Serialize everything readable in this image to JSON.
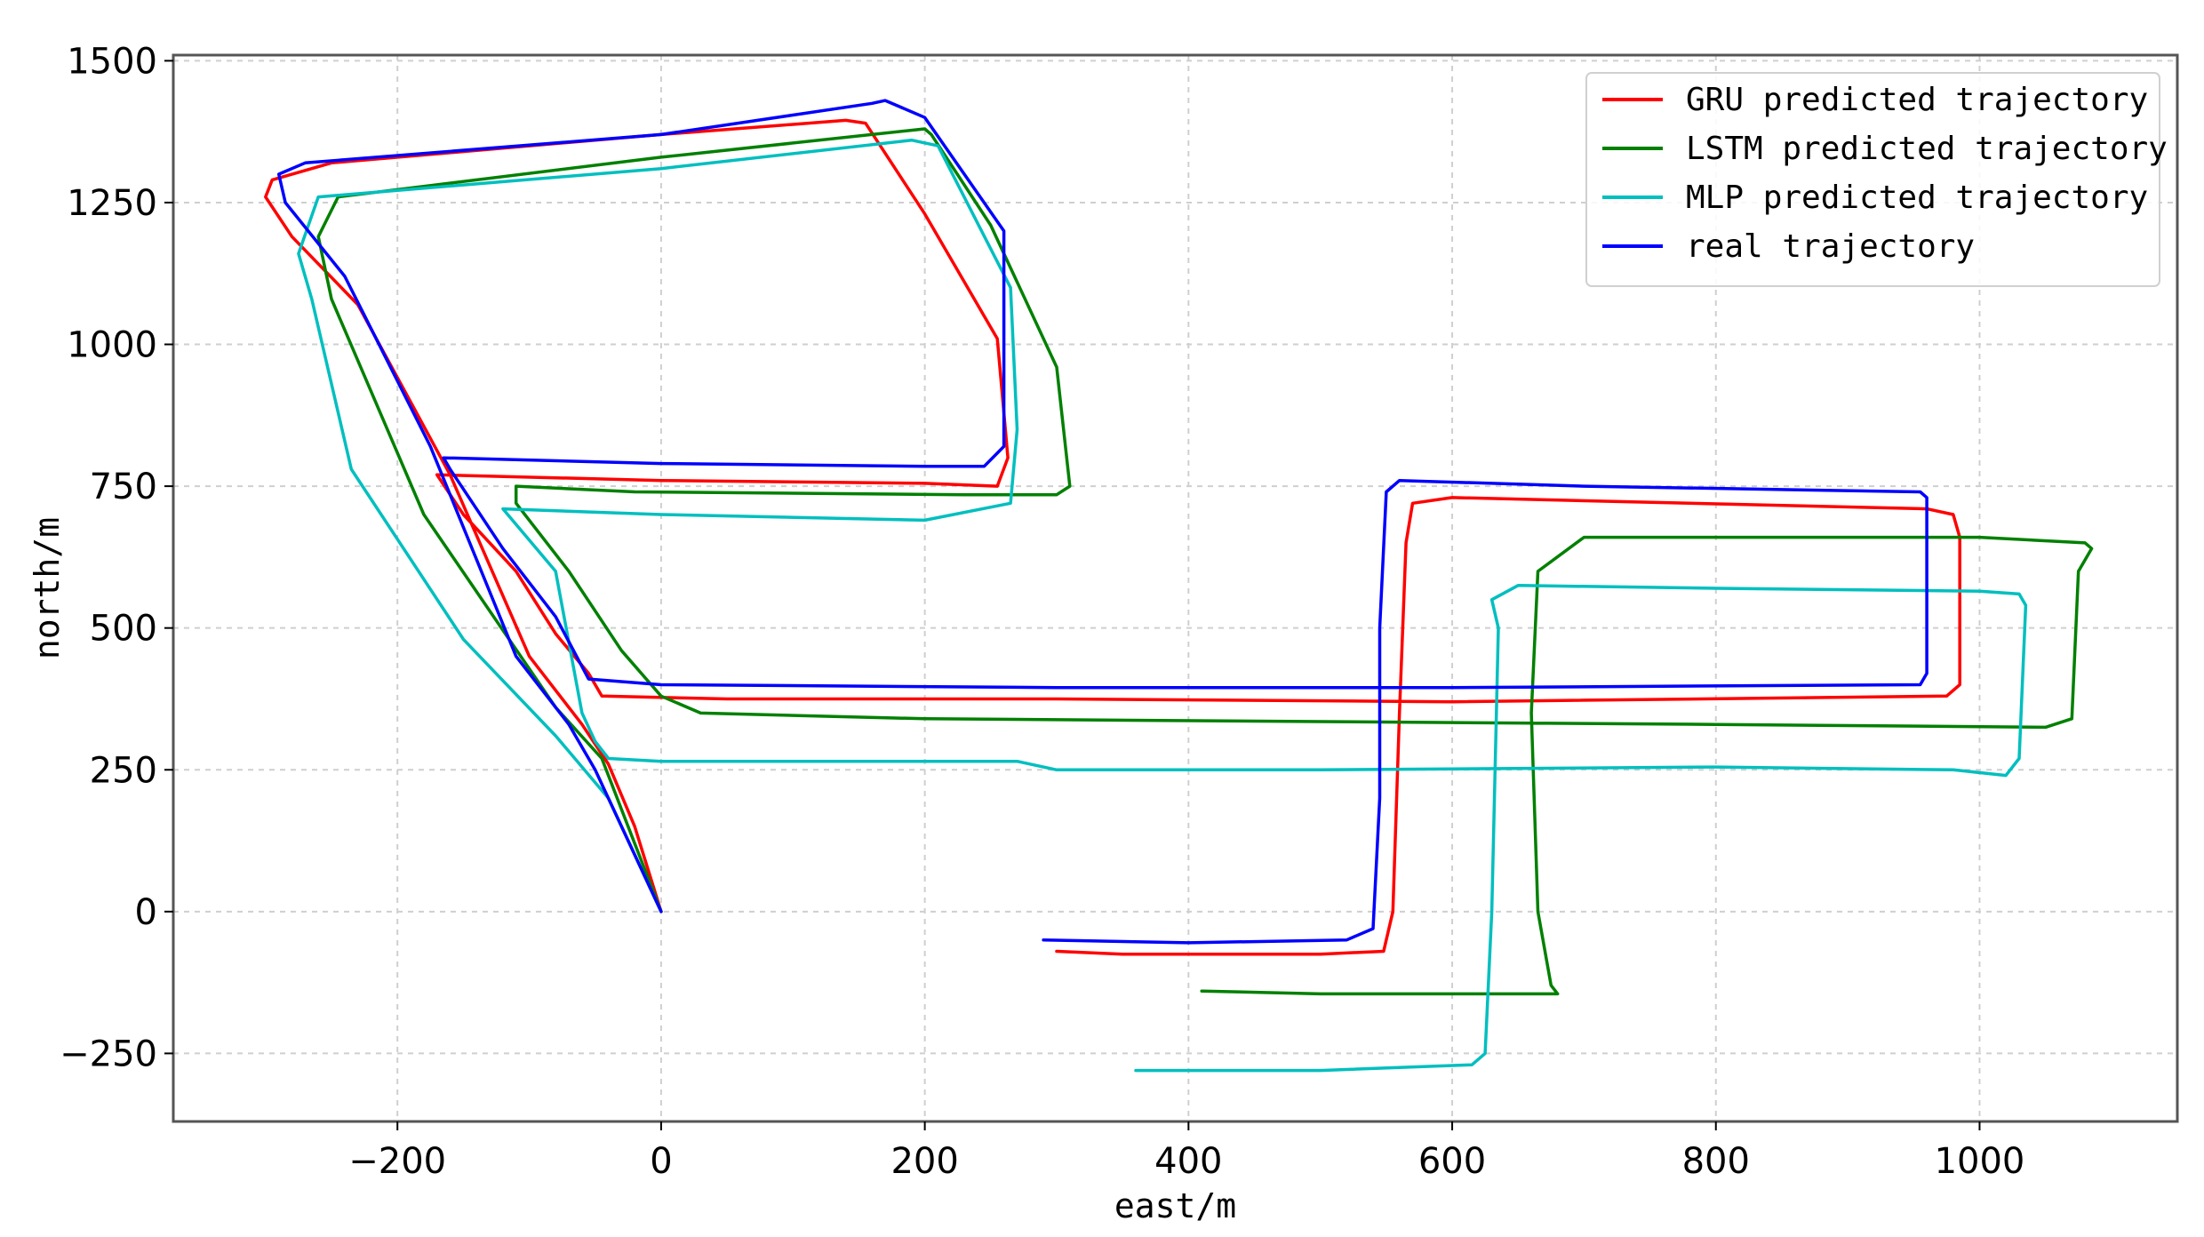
{
  "chart_data": {
    "type": "line",
    "title": "",
    "xlabel": "east/m",
    "ylabel": "north/m",
    "xlim": [
      -370,
      1150
    ],
    "ylim": [
      -370,
      1510
    ],
    "xticks": [
      -200,
      0,
      200,
      400,
      600,
      800,
      1000
    ],
    "yticks": [
      -250,
      0,
      250,
      500,
      750,
      1000,
      1250,
      1500
    ],
    "xtick_labels": [
      "−200",
      "0",
      "200",
      "400",
      "600",
      "800",
      "1000"
    ],
    "ytick_labels": [
      "−250",
      "0",
      "250",
      "500",
      "750",
      "1000",
      "1250",
      "1500"
    ],
    "grid": true,
    "legend_position": "top-right",
    "series": [
      {
        "name": "GRU predicted trajectory",
        "color": "#ff0000",
        "x": [
          0,
          -20,
          -40,
          -60,
          -100,
          -160,
          -230,
          -280,
          -300,
          -295,
          -250,
          0,
          140,
          155,
          200,
          255,
          263,
          255,
          200,
          0,
          -170,
          -150,
          -110,
          -80,
          -55,
          -45,
          50,
          300,
          600,
          975,
          985,
          985,
          980,
          960,
          600,
          570,
          565,
          560,
          555,
          548,
          500,
          350,
          300
        ],
        "y": [
          0,
          150,
          260,
          330,
          450,
          770,
          1070,
          1190,
          1260,
          1290,
          1320,
          1370,
          1395,
          1390,
          1230,
          1010,
          800,
          750,
          755,
          760,
          770,
          700,
          600,
          490,
          420,
          380,
          375,
          375,
          370,
          380,
          400,
          660,
          700,
          710,
          730,
          720,
          650,
          350,
          0,
          -70,
          -75,
          -75,
          -70
        ]
      },
      {
        "name": "LSTM predicted trajectory",
        "color": "#008000",
        "x": [
          0,
          -25,
          -45,
          -80,
          -180,
          -250,
          -260,
          -245,
          0,
          200,
          205,
          250,
          300,
          310,
          300,
          230,
          -20,
          -110,
          -110,
          -70,
          -30,
          0,
          30,
          200,
          500,
          800,
          1050,
          1070,
          1075,
          1085,
          1080,
          1000,
          700,
          665,
          660,
          665,
          675,
          680,
          675,
          640,
          500,
          410
        ],
        "y": [
          0,
          150,
          270,
          360,
          700,
          1080,
          1190,
          1260,
          1330,
          1380,
          1370,
          1210,
          960,
          750,
          735,
          735,
          740,
          750,
          720,
          600,
          460,
          380,
          350,
          340,
          335,
          330,
          325,
          340,
          600,
          640,
          650,
          660,
          660,
          600,
          350,
          0,
          -130,
          -145,
          -145,
          -145,
          -145,
          -140
        ]
      },
      {
        "name": "MLP predicted trajectory",
        "color": "#00bfbf",
        "x": [
          0,
          -40,
          -80,
          -150,
          -235,
          -265,
          -275,
          -260,
          0,
          190,
          210,
          265,
          270,
          265,
          200,
          0,
          -120,
          -80,
          -60,
          -50,
          -40,
          0,
          270,
          300,
          500,
          800,
          980,
          1020,
          1030,
          1035,
          1030,
          1000,
          800,
          650,
          630,
          635,
          630,
          625,
          615,
          500,
          360
        ],
        "y": [
          0,
          200,
          310,
          480,
          780,
          1080,
          1160,
          1260,
          1310,
          1360,
          1350,
          1100,
          850,
          720,
          690,
          700,
          710,
          600,
          350,
          300,
          270,
          265,
          265,
          250,
          250,
          255,
          250,
          240,
          270,
          540,
          560,
          565,
          570,
          575,
          550,
          500,
          0,
          -250,
          -270,
          -280,
          -280
        ]
      },
      {
        "name": "real trajectory",
        "color": "#0000ff",
        "x": [
          0,
          -30,
          -50,
          -70,
          -110,
          -175,
          -240,
          -285,
          -290,
          -270,
          0,
          160,
          170,
          200,
          260,
          260,
          245,
          200,
          0,
          -165,
          -160,
          -120,
          -80,
          -55,
          0,
          300,
          600,
          955,
          960,
          960,
          955,
          700,
          560,
          550,
          545,
          545,
          540,
          520,
          400,
          290
        ],
        "y": [
          0,
          150,
          250,
          330,
          450,
          820,
          1120,
          1250,
          1300,
          1320,
          1370,
          1425,
          1430,
          1400,
          1200,
          820,
          785,
          785,
          790,
          800,
          780,
          640,
          520,
          410,
          400,
          395,
          395,
          400,
          420,
          730,
          740,
          750,
          760,
          740,
          500,
          200,
          -30,
          -50,
          -55,
          -50
        ]
      }
    ]
  }
}
